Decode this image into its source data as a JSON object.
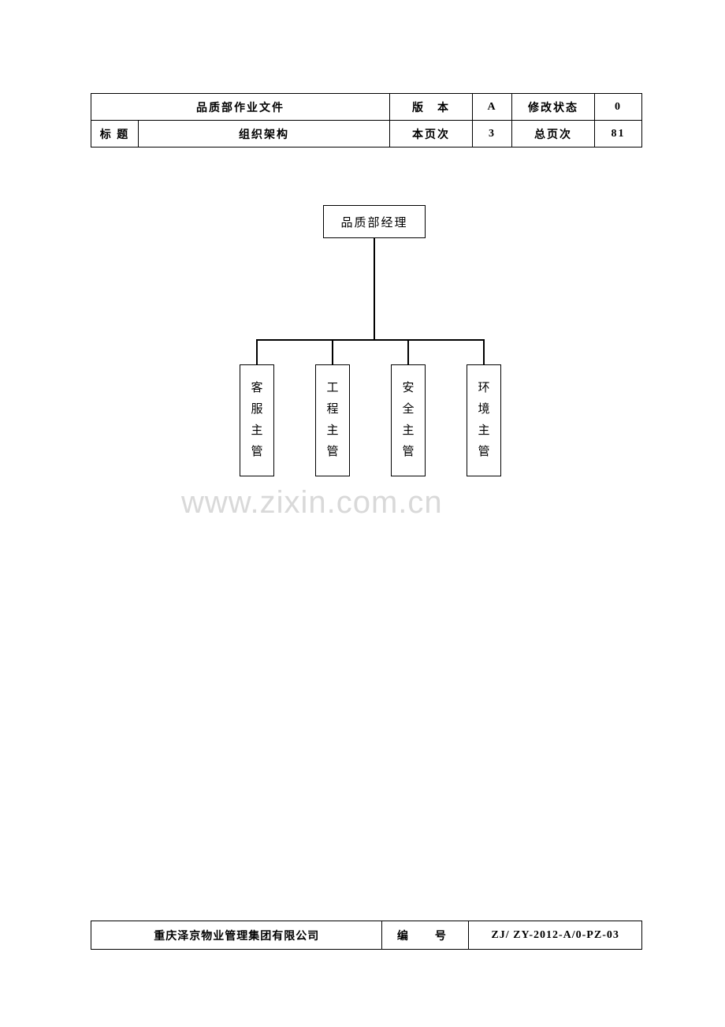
{
  "header": {
    "row1": {
      "main": "品质部作业文件",
      "label1": "版　本",
      "val1": "A",
      "label2": "修改状态",
      "val2": "0"
    },
    "row2": {
      "dept": "标 题",
      "title": "组织架构",
      "label1": "本页次",
      "val1": "3",
      "label2": "总页次",
      "val2": "81"
    }
  },
  "org": {
    "root": "品质部经理",
    "children": [
      "客服主管",
      "工程主管",
      "安全主管",
      "环境主管"
    ],
    "box_border_color": "#000000",
    "line_color": "#000000",
    "line_width": 1.5,
    "font_size": 15
  },
  "watermark": {
    "text": "www.zixin.com.cn",
    "color": "#d9d9d9",
    "fontsize": 40
  },
  "footer": {
    "company": "重庆泽京物业管理集团有限公司",
    "code_label": "编　号",
    "code_value": "ZJ/ ZY-2012-A/0-PZ-03"
  }
}
